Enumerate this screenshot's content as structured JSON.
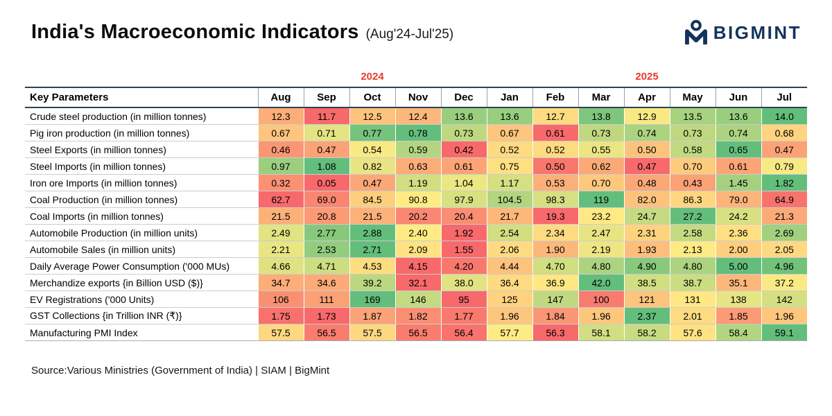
{
  "header": {
    "title": "India's Macroeconomic Indicators",
    "subtitle": "(Aug'24-Jul'25)",
    "logo": {
      "text": "BIGMINT",
      "color": "#14335c"
    }
  },
  "chart_data": {
    "type": "heatmap",
    "title": "India's Macroeconomic Indicators (Aug'24-Jul'25)",
    "first_column_header": "Key Parameters",
    "columns": [
      "Aug",
      "Sep",
      "Oct",
      "Nov",
      "Dec",
      "Jan",
      "Feb",
      "Mar",
      "Apr",
      "May",
      "Jun",
      "Jul"
    ],
    "year_groups": [
      {
        "label": "2024",
        "span": 5
      },
      {
        "label": "2025",
        "span": 7
      }
    ],
    "year_label_color": "#e8392b",
    "colorscale": {
      "min": "#F8696B",
      "mid": "#FFEB84",
      "max": "#63BE7B"
    },
    "rows": [
      {
        "label": "Crude steel production (in million tonnes)",
        "values": [
          "12.3",
          "11.7",
          "12.5",
          "12.4",
          "13.6",
          "13.6",
          "12.7",
          "13.8",
          "12.9",
          "13.5",
          "13.6",
          "14.0"
        ]
      },
      {
        "label": "Pig iron production (in million tonnes)",
        "values": [
          "0.67",
          "0.71",
          "0.77",
          "0.78",
          "0.73",
          "0.67",
          "0.61",
          "0.73",
          "0.74",
          "0.73",
          "0.74",
          "0.68"
        ]
      },
      {
        "label": "Steel Exports (in million tonnes)",
        "values": [
          "0.46",
          "0.47",
          "0.54",
          "0.59",
          "0.42",
          "0.52",
          "0.52",
          "0.55",
          "0.50",
          "0.58",
          "0.65",
          "0.47"
        ]
      },
      {
        "label": "Steel Imports (in million tonnes)",
        "values": [
          "0.97",
          "1.08",
          "0.82",
          "0.63",
          "0.61",
          "0.75",
          "0.50",
          "0.62",
          "0.47",
          "0.70",
          "0.61",
          "0.79"
        ]
      },
      {
        "label": "Iron ore Imports (in million tonnes)",
        "values": [
          "0.32",
          "0.05",
          "0.47",
          "1.19",
          "1.04",
          "1.17",
          "0.53",
          "0.70",
          "0.48",
          "0.43",
          "1.45",
          "1.82"
        ]
      },
      {
        "label": "Coal Production (in million tonnes)",
        "values": [
          "62.7",
          "69.0",
          "84.5",
          "90.8",
          "97.9",
          "104.5",
          "98.3",
          "119",
          "82.0",
          "86.3",
          "79.0",
          "64.9"
        ]
      },
      {
        "label": "Coal Imports (in million tonnes)",
        "values": [
          "21.5",
          "20.8",
          "21.5",
          "20.2",
          "20.4",
          "21.7",
          "19.3",
          "23.2",
          "24.7",
          "27.2",
          "24.2",
          "21.3"
        ]
      },
      {
        "label": "Automobile Production (in million units)",
        "values": [
          "2.49",
          "2.77",
          "2.88",
          "2.40",
          "1.92",
          "2.54",
          "2.34",
          "2.47",
          "2.31",
          "2.58",
          "2.36",
          "2.69"
        ]
      },
      {
        "label": "Automobile Sales (in million units)",
        "values": [
          "2.21",
          "2.53",
          "2.71",
          "2.09",
          "1.55",
          "2.06",
          "1.90",
          "2.19",
          "1.93",
          "2.13",
          "2.00",
          "2.05"
        ]
      },
      {
        "label": "Daily Average Power Consumption ('000 MUs)",
        "values": [
          "4.66",
          "4.71",
          "4.53",
          "4.15",
          "4.20",
          "4.44",
          "4.70",
          "4.80",
          "4.90",
          "4.80",
          "5.00",
          "4.96"
        ]
      },
      {
        "label": "Merchandize exports {in Billion USD ($)}",
        "values": [
          "34.7",
          "34.6",
          "39.2",
          "32.1",
          "38.0",
          "36.4",
          "36.9",
          "42.0",
          "38.5",
          "38.7",
          "35.1",
          "37.2"
        ]
      },
      {
        "label": "EV Registrations ('000 Units)",
        "values": [
          "106",
          "111",
          "169",
          "146",
          "95",
          "125",
          "147",
          "100",
          "121",
          "131",
          "138",
          "142"
        ]
      },
      {
        "label": "GST Collections {in Trillion INR (₹)}",
        "values": [
          "1.75",
          "1.73",
          "1.87",
          "1.82",
          "1.77",
          "1.96",
          "1.84",
          "1.96",
          "2.37",
          "2.01",
          "1.85",
          "1.96"
        ]
      },
      {
        "label": "Manufacturing PMI Index",
        "values": [
          "57.5",
          "56.5",
          "57.5",
          "56.5",
          "56.4",
          "57.7",
          "56.3",
          "58.1",
          "58.2",
          "57.6",
          "58.4",
          "59.1"
        ]
      }
    ]
  },
  "footer": {
    "source": "Source:Various Ministries (Government of India) | SIAM | BigMint"
  }
}
